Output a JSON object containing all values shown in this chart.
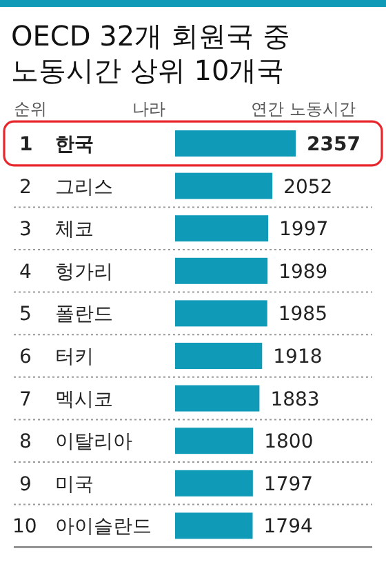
{
  "chart_data": {
    "type": "bar",
    "orientation": "horizontal",
    "title": "OECD 32개 회원국 중 노동시간 상위 10개국",
    "ylabel": "나라",
    "xlabel": "연간 노동시간",
    "categories": [
      "한국",
      "그리스",
      "체코",
      "헝가리",
      "폴란드",
      "터키",
      "멕시코",
      "이탈리아",
      "미국",
      "아이슬란드"
    ],
    "values": [
      2357,
      2052,
      1997,
      1989,
      1985,
      1918,
      1883,
      1800,
      1797,
      1794
    ],
    "color": "#0f9bb8",
    "xlim": [
      780,
      2420
    ],
    "data_labels": true,
    "annotations": [
      "순위",
      "1",
      "2",
      "3",
      "4",
      "5",
      "6",
      "7",
      "8",
      "9",
      "10"
    ]
  }
}
